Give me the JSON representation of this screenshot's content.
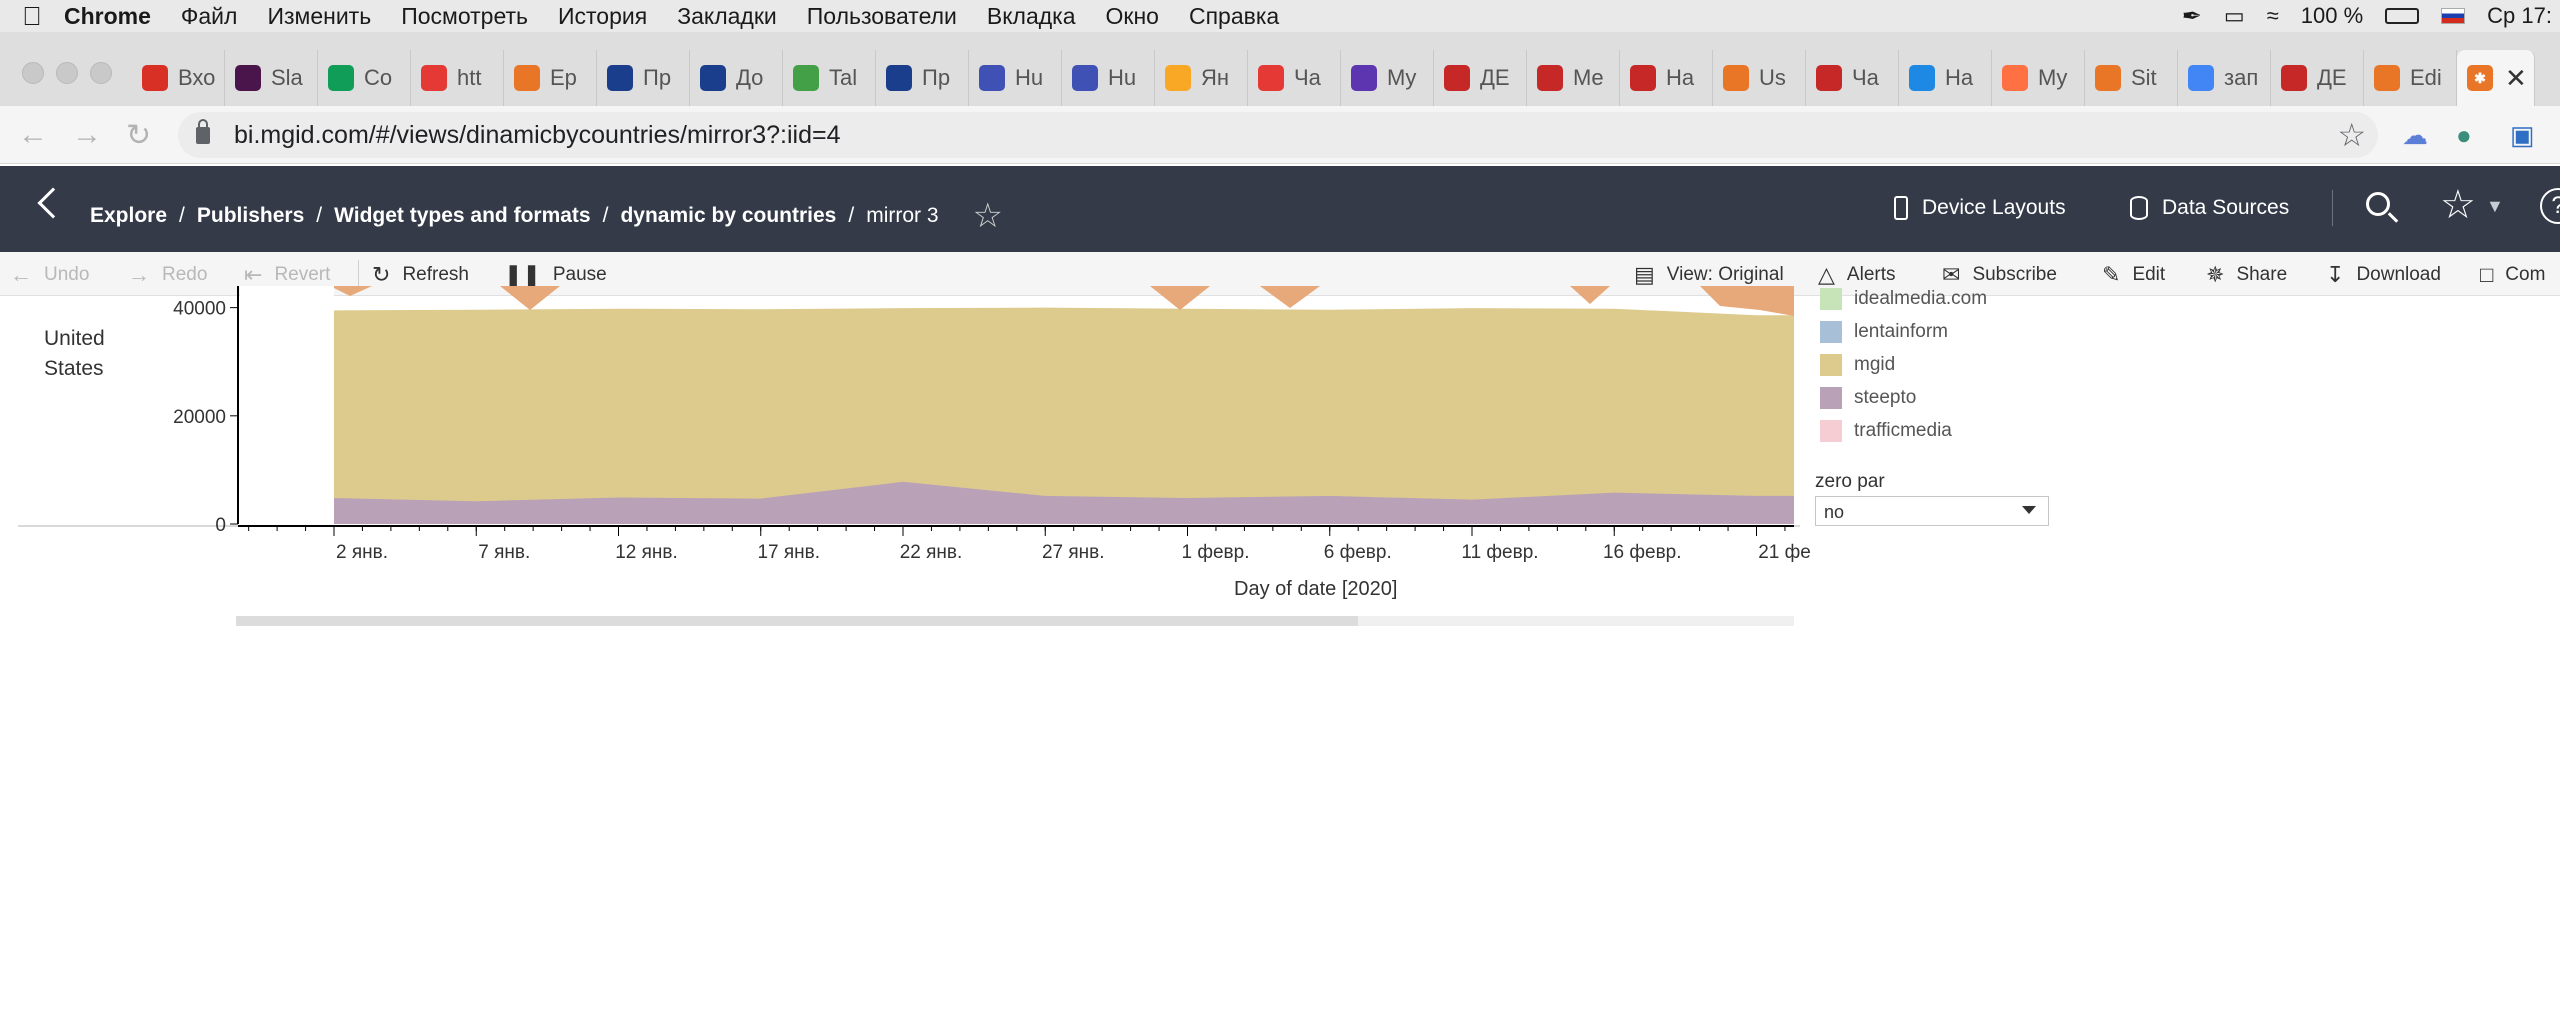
{
  "menubar": {
    "app": "Chrome",
    "items": [
      "Файл",
      "Изменить",
      "Посмотреть",
      "История",
      "Закладки",
      "Пользователи",
      "Вкладка",
      "Окно",
      "Справка"
    ],
    "battery": "100 %",
    "clock": "Ср 17:"
  },
  "tabs": [
    {
      "label": "Вхо",
      "icon": "gmail-icon",
      "color": "#d93025"
    },
    {
      "label": "Sla",
      "icon": "slack-icon",
      "color": "#4a154b"
    },
    {
      "label": "Co",
      "icon": "sheets-icon",
      "color": "#0f9d58"
    },
    {
      "label": "htt",
      "icon": "chart-icon",
      "color": "#e53935"
    },
    {
      "label": "Ep",
      "icon": "tableau-icon",
      "color": "#e97627"
    },
    {
      "label": "Пр",
      "icon": "jira-icon",
      "color": "#1a3e8c"
    },
    {
      "label": "До",
      "icon": "jira-icon",
      "color": "#1a3e8c"
    },
    {
      "label": "Tal",
      "icon": "talk-icon",
      "color": "#43a047"
    },
    {
      "label": "Пр",
      "icon": "jira-icon",
      "color": "#1a3e8c"
    },
    {
      "label": "Hu",
      "icon": "hubstaff-icon",
      "color": "#3f51b5"
    },
    {
      "label": "Hu",
      "icon": "hubstaff-icon",
      "color": "#3f51b5"
    },
    {
      "label": "Ян",
      "icon": "music-icon",
      "color": "#f9a825"
    },
    {
      "label": "Ча",
      "icon": "chat-icon",
      "color": "#e53935"
    },
    {
      "label": "My",
      "icon": "square-icon",
      "color": "#5e35b1"
    },
    {
      "label": "ДЕ",
      "icon": "data-icon",
      "color": "#c62828"
    },
    {
      "label": "Me",
      "icon": "tower-icon",
      "color": "#c62828"
    },
    {
      "label": "На",
      "icon": "tower-icon",
      "color": "#c62828"
    },
    {
      "label": "Us",
      "icon": "tableau-icon",
      "color": "#e97627"
    },
    {
      "label": "Ча",
      "icon": "d-icon",
      "color": "#c62828"
    },
    {
      "label": "На",
      "icon": "gear-icon",
      "color": "#1e88e5"
    },
    {
      "label": "My",
      "icon": "bubble-icon",
      "color": "#ff7043"
    },
    {
      "label": "Sit",
      "icon": "tableau-icon",
      "color": "#e97627"
    },
    {
      "label": "зап",
      "icon": "google-icon",
      "color": "#4285f4"
    },
    {
      "label": "ДЕ",
      "icon": "data-icon",
      "color": "#c62828"
    },
    {
      "label": "Edi",
      "icon": "tableau-icon",
      "color": "#e97627"
    }
  ],
  "address": {
    "url": "bi.mgid.com/#/views/dinamicbycountries/mirror3?:iid=4"
  },
  "header": {
    "breadcrumbs": [
      "Explore",
      "Publishers",
      "Widget types and formats",
      "dynamic by countries"
    ],
    "current": "mirror 3",
    "device_layouts": "Device Layouts",
    "data_sources": "Data Sources"
  },
  "toolbar": {
    "undo": "Undo",
    "redo": "Redo",
    "revert": "Revert",
    "refresh": "Refresh",
    "pause": "Pause",
    "view": "View: Original",
    "alerts": "Alerts",
    "subscribe": "Subscribe",
    "edit": "Edit",
    "share": "Share",
    "download": "Download",
    "comments": "Com"
  },
  "filter": {
    "label": "zero par",
    "value": "no"
  },
  "colors": {
    "mgid": "#ddcb8d",
    "steepto": "#b9a2b7",
    "lentainform": "#a8bfd8",
    "idealmedia": "#c7e3b8",
    "trafficmedia": "#f6cdd2",
    "other": "#e7a87a"
  },
  "chart_data": {
    "type": "area",
    "row_label": "United States",
    "x": [
      "2 янв.",
      "7 янв.",
      "12 янв.",
      "17 янв.",
      "22 янв.",
      "27 янв.",
      "1 февр.",
      "6 февр.",
      "11 февр.",
      "16 февр.",
      "21 фе"
    ],
    "xlabel": "Day of date [2020]",
    "ylabel": "",
    "y_ticks": [
      0,
      20000,
      40000
    ],
    "ylim": [
      0,
      44000
    ],
    "grid": false,
    "legend": {
      "placement": "right",
      "entries": [
        {
          "name": "idealmedia.com",
          "color": "#c7e3b8"
        },
        {
          "name": "lentainform",
          "color": "#a8bfd8"
        },
        {
          "name": "mgid",
          "color": "#ddcb8d"
        },
        {
          "name": "steepto",
          "color": "#b9a2b7"
        },
        {
          "name": "trafficmedia",
          "color": "#f6cdd2"
        }
      ]
    },
    "series": [
      {
        "name": "steepto",
        "color": "#b9a2b7",
        "values": [
          4800,
          4200,
          4900,
          4700,
          7800,
          5200,
          4800,
          5200,
          4500,
          5800,
          5200
        ]
      },
      {
        "name": "mgid",
        "color": "#ddcb8d",
        "values": [
          39500,
          39600,
          39800,
          39700,
          39900,
          40000,
          39800,
          39600,
          39900,
          39800,
          38600
        ]
      }
    ]
  }
}
